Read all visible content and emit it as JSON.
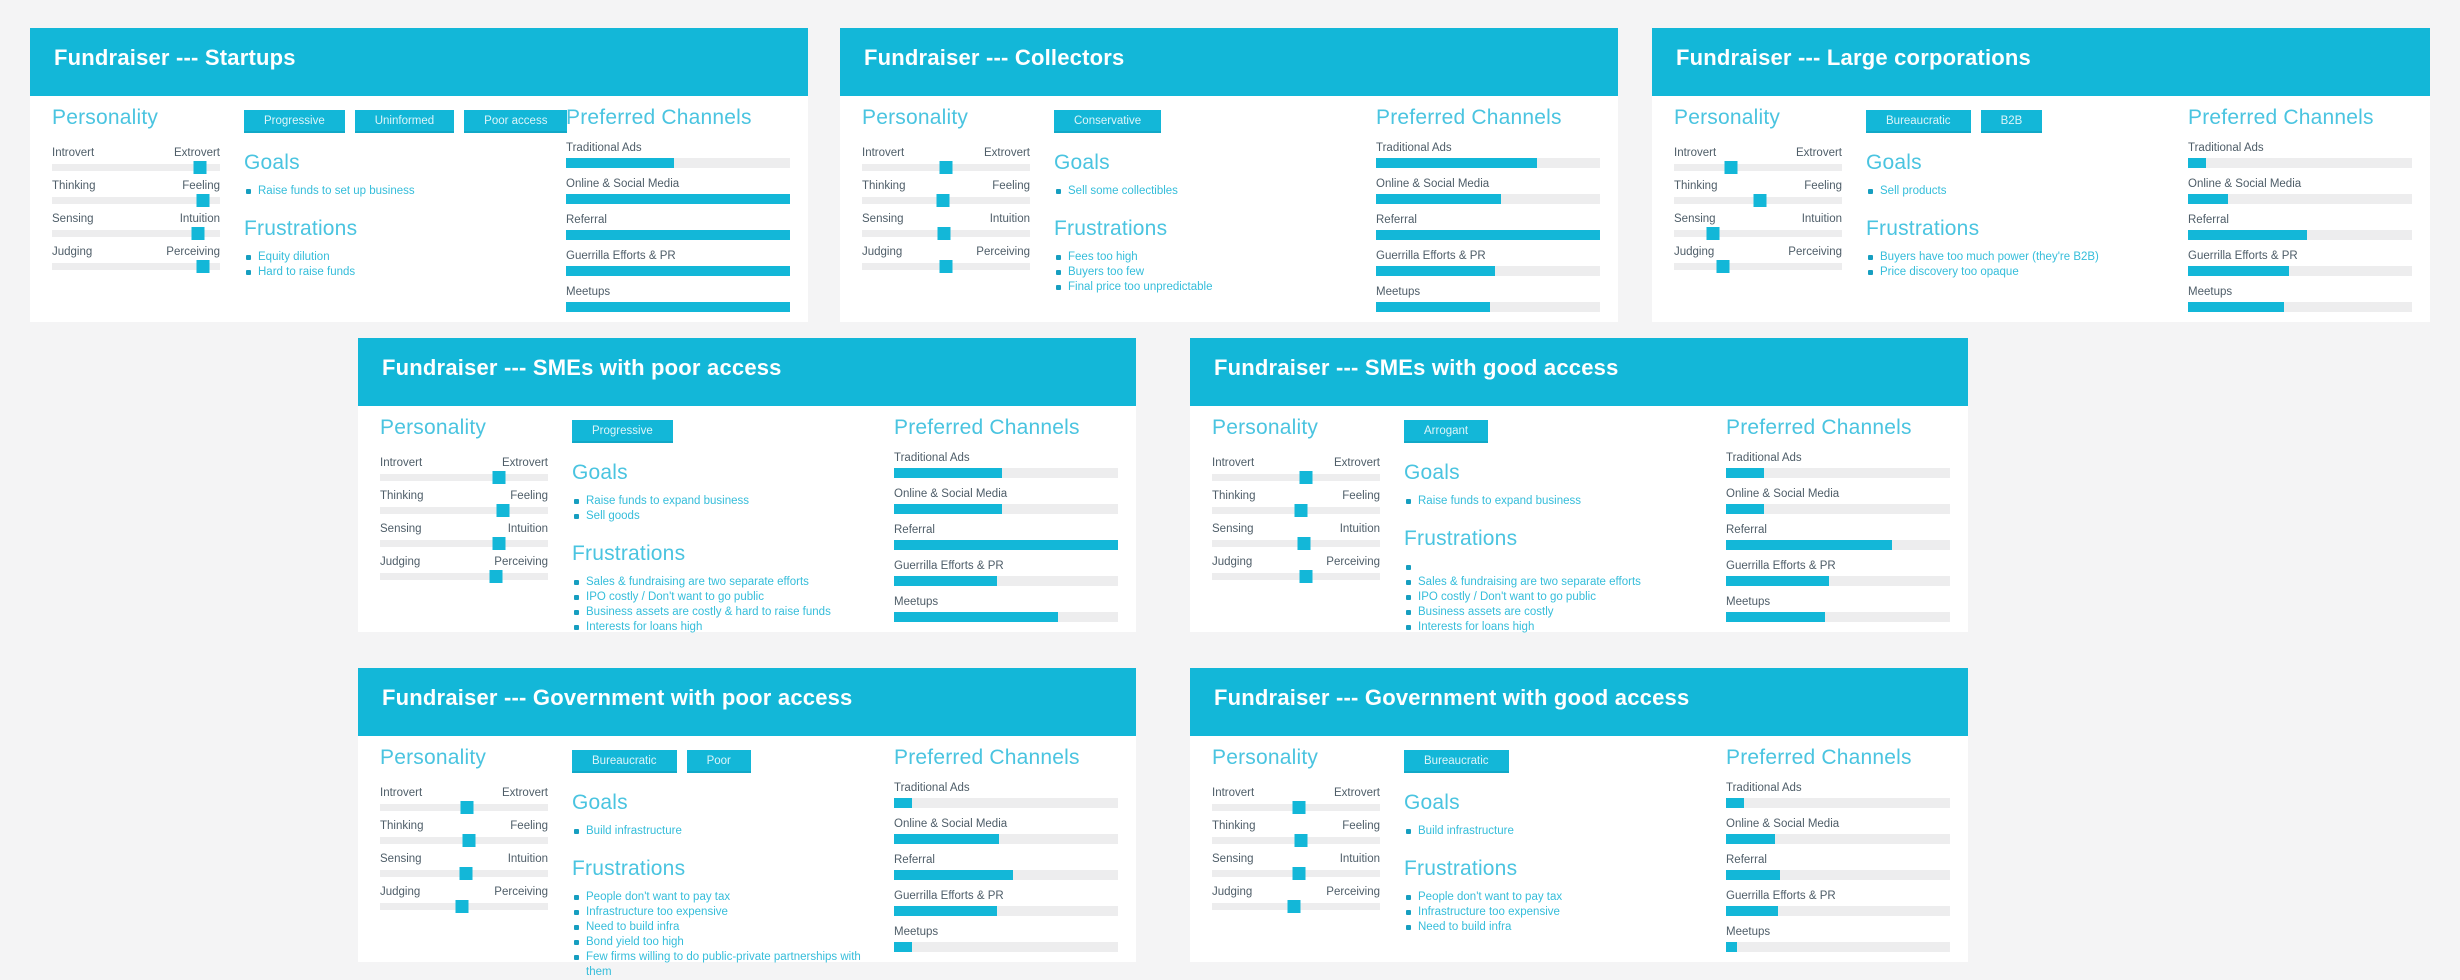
{
  "board": {
    "background": "#f4f4f5",
    "accent": "#13b7d8"
  },
  "labels": {
    "personality_heading": "Personality",
    "goals_heading": "Goals",
    "frustrations_heading": "Frustrations",
    "channels_heading": "Preferred Channels",
    "slider_pairs": [
      [
        "Introvert",
        "Extrovert"
      ],
      [
        "Thinking",
        "Feeling"
      ],
      [
        "Sensing",
        "Intuition"
      ],
      [
        "Judging",
        "Perceiving"
      ]
    ],
    "channel_names": [
      "Traditional Ads",
      "Online & Social Media",
      "Referral",
      "Guerrilla Efforts & PR",
      "Meetups"
    ]
  },
  "cards": [
    {
      "title": "Fundraiser --- Startups",
      "tags": [
        "Progressive",
        "Uninformed",
        "Poor access"
      ],
      "personality": [
        88,
        90,
        87,
        90
      ],
      "goals": [
        "Raise funds to set up business"
      ],
      "frustrations": [
        "Equity dilution",
        "Hard to raise funds"
      ],
      "channels": [
        48,
        100,
        100,
        100,
        100
      ]
    },
    {
      "title": "Fundraiser --- Collectors",
      "tags": [
        "Conservative"
      ],
      "personality": [
        50,
        48,
        49,
        50
      ],
      "goals": [
        "Sell some collectibles"
      ],
      "frustrations": [
        "Fees too high",
        "Buyers too few",
        "Final price too unpredictable"
      ],
      "channels": [
        72,
        56,
        100,
        53,
        51
      ]
    },
    {
      "title": "Fundraiser --- Large corporations",
      "tags": [
        "Bureaucratic",
        "B2B"
      ],
      "personality": [
        34,
        51,
        23,
        29
      ],
      "goals": [
        "Sell products"
      ],
      "frustrations": [
        "Buyers have too much power (they're B2B)",
        "Price discovery too opaque"
      ],
      "channels": [
        8,
        18,
        53,
        45,
        43
      ]
    },
    {
      "title": "Fundraiser --- SMEs with poor access",
      "tags": [
        "Progressive"
      ],
      "personality": [
        71,
        73,
        71,
        69
      ],
      "goals": [
        "Raise funds to expand business",
        "Sell goods"
      ],
      "frustrations": [
        "Sales & fundraising are two separate efforts",
        "IPO costly / Don't want to go public",
        "Business assets are costly & hard to raise funds",
        "Interests for loans high"
      ],
      "channels": [
        48,
        48,
        100,
        46,
        73
      ]
    },
    {
      "title": "Fundraiser --- SMEs with good access",
      "tags": [
        "Arrogant"
      ],
      "personality": [
        56,
        53,
        55,
        56
      ],
      "goals": [
        "Raise funds to expand business"
      ],
      "frustrations": [
        "",
        "Sales & fundraising are two separate efforts",
        "IPO costly / Don't want to go public",
        "Business assets are costly",
        "Interests for loans high"
      ],
      "channels": [
        17,
        17,
        74,
        46,
        44
      ]
    },
    {
      "title": "Fundraiser --- Government with poor access",
      "tags": [
        "Bureaucratic",
        "Poor"
      ],
      "personality": [
        52,
        53,
        51,
        49
      ],
      "goals": [
        "Build infrastructure"
      ],
      "frustrations": [
        "People don't want to pay tax",
        "Infrastructure too expensive",
        "Need to build infra",
        "Bond yield too high",
        "Few firms willing to do public-private partnerships with them"
      ],
      "channels": [
        8,
        47,
        53,
        46,
        8
      ]
    },
    {
      "title": "Fundraiser --- Government with good access",
      "tags": [
        "Bureaucratic"
      ],
      "personality": [
        52,
        53,
        52,
        49
      ],
      "goals": [
        "Build infrastructure"
      ],
      "frustrations": [
        "People don't want to pay tax",
        "Infrastructure too expensive",
        "Need to build infra"
      ],
      "channels": [
        8,
        22,
        24,
        23,
        5
      ]
    }
  ]
}
